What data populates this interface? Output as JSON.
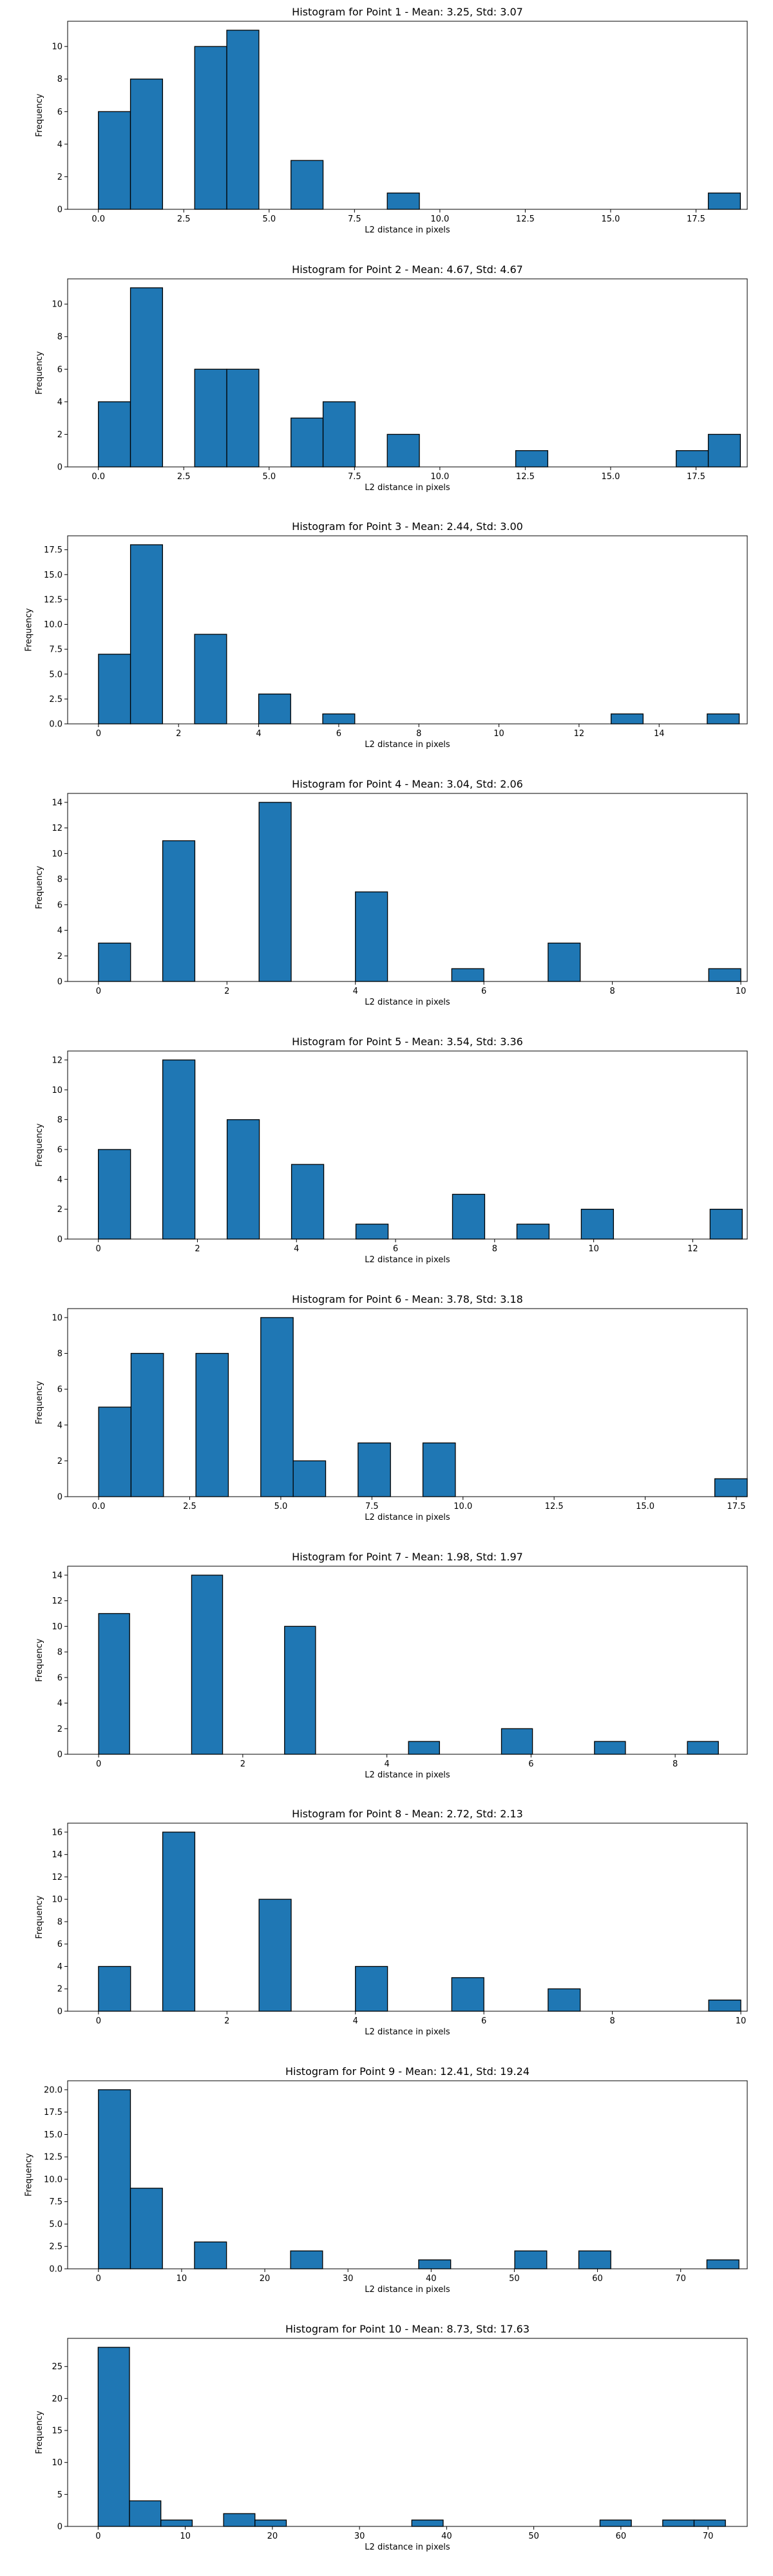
{
  "chart_data": [
    {
      "type": "bar",
      "title": "Histogram for Point 1 - Mean: 3.25, Std: 3.07",
      "xlabel": "L2 distance in pixels",
      "ylabel": "Frequency",
      "xlim": [
        -0.9,
        19.0
      ],
      "ylim": [
        0,
        11.55
      ],
      "xticks": [
        0,
        2.5,
        5,
        7.5,
        10,
        12.5,
        15,
        17.5
      ],
      "xtick_labels": [
        "0.0",
        "2.5",
        "5.0",
        "7.5",
        "10.0",
        "12.5",
        "15.0",
        "17.5"
      ],
      "yticks": [
        0,
        2,
        4,
        6,
        8,
        10
      ],
      "ytick_labels": [
        "0",
        "2",
        "4",
        "6",
        "8",
        "10"
      ],
      "bins": [
        {
          "x0": 0.0,
          "x1": 0.94,
          "count": 6
        },
        {
          "x0": 0.94,
          "x1": 1.88,
          "count": 8
        },
        {
          "x0": 2.82,
          "x1": 3.76,
          "count": 10
        },
        {
          "x0": 3.76,
          "x1": 4.7,
          "count": 11
        },
        {
          "x0": 5.64,
          "x1": 6.58,
          "count": 3
        },
        {
          "x0": 8.46,
          "x1": 9.4,
          "count": 1
        },
        {
          "x0": 17.86,
          "x1": 18.8,
          "count": 1
        }
      ]
    },
    {
      "type": "bar",
      "title": "Histogram for Point 2 - Mean: 4.67, Std: 4.67",
      "xlabel": "L2 distance in pixels",
      "ylabel": "Frequency",
      "xlim": [
        -0.9,
        19.0
      ],
      "ylim": [
        0,
        11.55
      ],
      "xticks": [
        0,
        2.5,
        5,
        7.5,
        10,
        12.5,
        15,
        17.5
      ],
      "xtick_labels": [
        "0.0",
        "2.5",
        "5.0",
        "7.5",
        "10.0",
        "12.5",
        "15.0",
        "17.5"
      ],
      "yticks": [
        0,
        2,
        4,
        6,
        8,
        10
      ],
      "ytick_labels": [
        "0",
        "2",
        "4",
        "6",
        "8",
        "10"
      ],
      "bins": [
        {
          "x0": 0.0,
          "x1": 0.94,
          "count": 4
        },
        {
          "x0": 0.94,
          "x1": 1.88,
          "count": 11
        },
        {
          "x0": 2.82,
          "x1": 3.76,
          "count": 6
        },
        {
          "x0": 3.76,
          "x1": 4.7,
          "count": 6
        },
        {
          "x0": 5.64,
          "x1": 6.58,
          "count": 3
        },
        {
          "x0": 6.58,
          "x1": 7.52,
          "count": 4
        },
        {
          "x0": 8.46,
          "x1": 9.4,
          "count": 2
        },
        {
          "x0": 12.22,
          "x1": 13.16,
          "count": 1
        },
        {
          "x0": 16.92,
          "x1": 17.86,
          "count": 1
        },
        {
          "x0": 17.86,
          "x1": 18.8,
          "count": 2
        }
      ]
    },
    {
      "type": "bar",
      "title": "Histogram for Point 3 - Mean: 2.44, Std: 3.00",
      "xlabel": "L2 distance in pixels",
      "ylabel": "Frequency",
      "xlim": [
        -0.77,
        16.2
      ],
      "ylim": [
        0,
        18.9
      ],
      "xticks": [
        0,
        2,
        4,
        6,
        8,
        10,
        12,
        14
      ],
      "xtick_labels": [
        "0",
        "2",
        "4",
        "6",
        "8",
        "10",
        "12",
        "14"
      ],
      "yticks": [
        0,
        2.5,
        5,
        7.5,
        10,
        12.5,
        15,
        17.5
      ],
      "ytick_labels": [
        "0.0",
        "2.5",
        "5.0",
        "7.5",
        "10.0",
        "12.5",
        "15.0",
        "17.5"
      ],
      "bins": [
        {
          "x0": 0.0,
          "x1": 0.8,
          "count": 7
        },
        {
          "x0": 0.8,
          "x1": 1.6,
          "count": 18
        },
        {
          "x0": 2.4,
          "x1": 3.2,
          "count": 9
        },
        {
          "x0": 4.0,
          "x1": 4.8,
          "count": 3
        },
        {
          "x0": 5.6,
          "x1": 6.4,
          "count": 1
        },
        {
          "x0": 12.8,
          "x1": 13.6,
          "count": 1
        },
        {
          "x0": 15.2,
          "x1": 16.0,
          "count": 1
        }
      ]
    },
    {
      "type": "bar",
      "title": "Histogram for Point 4 - Mean: 3.04, Std: 2.06",
      "xlabel": "L2 distance in pixels",
      "ylabel": "Frequency",
      "xlim": [
        -0.48,
        10.1
      ],
      "ylim": [
        0,
        14.7
      ],
      "xticks": [
        0,
        2,
        4,
        6,
        8,
        10
      ],
      "xtick_labels": [
        "0",
        "2",
        "4",
        "6",
        "8",
        "10"
      ],
      "yticks": [
        0,
        2,
        4,
        6,
        8,
        10,
        12,
        14
      ],
      "ytick_labels": [
        "0",
        "2",
        "4",
        "6",
        "8",
        "10",
        "12",
        "14"
      ],
      "bins": [
        {
          "x0": 0.0,
          "x1": 0.5,
          "count": 3
        },
        {
          "x0": 1.0,
          "x1": 1.5,
          "count": 11
        },
        {
          "x0": 2.5,
          "x1": 3.0,
          "count": 14
        },
        {
          "x0": 4.0,
          "x1": 4.5,
          "count": 7
        },
        {
          "x0": 5.5,
          "x1": 6.0,
          "count": 1
        },
        {
          "x0": 7.0,
          "x1": 7.5,
          "count": 3
        },
        {
          "x0": 9.5,
          "x1": 10.0,
          "count": 1
        }
      ]
    },
    {
      "type": "bar",
      "title": "Histogram for Point 5 - Mean: 3.54, Std: 3.36",
      "xlabel": "L2 distance in pixels",
      "ylabel": "Frequency",
      "xlim": [
        -0.62,
        13.1
      ],
      "ylim": [
        0,
        12.6
      ],
      "xticks": [
        0,
        2,
        4,
        6,
        8,
        10,
        12
      ],
      "xtick_labels": [
        "0",
        "2",
        "4",
        "6",
        "8",
        "10",
        "12"
      ],
      "yticks": [
        0,
        2,
        4,
        6,
        8,
        10,
        12
      ],
      "ytick_labels": [
        "0",
        "2",
        "4",
        "6",
        "8",
        "10",
        "12"
      ],
      "bins": [
        {
          "x0": 0.0,
          "x1": 0.65,
          "count": 6
        },
        {
          "x0": 1.3,
          "x1": 1.95,
          "count": 12
        },
        {
          "x0": 2.6,
          "x1": 3.25,
          "count": 8
        },
        {
          "x0": 3.9,
          "x1": 4.55,
          "count": 5
        },
        {
          "x0": 5.2,
          "x1": 5.85,
          "count": 1
        },
        {
          "x0": 7.15,
          "x1": 7.8,
          "count": 3
        },
        {
          "x0": 8.45,
          "x1": 9.1,
          "count": 1
        },
        {
          "x0": 9.75,
          "x1": 10.4,
          "count": 2
        },
        {
          "x0": 12.35,
          "x1": 13.0,
          "count": 2
        }
      ]
    },
    {
      "type": "bar",
      "title": "Histogram for Point 6 - Mean: 3.78, Std: 3.18",
      "xlabel": "L2 distance in pixels",
      "ylabel": "Frequency",
      "xlim": [
        -0.85,
        17.8
      ],
      "ylim": [
        0,
        10.5
      ],
      "xticks": [
        0,
        2.5,
        5,
        7.5,
        10,
        12.5,
        15,
        17.5
      ],
      "xtick_labels": [
        "0.0",
        "2.5",
        "5.0",
        "7.5",
        "10.0",
        "12.5",
        "15.0",
        "17.5"
      ],
      "yticks": [
        0,
        2,
        4,
        6,
        8,
        10
      ],
      "ytick_labels": [
        "0",
        "2",
        "4",
        "6",
        "8",
        "10"
      ],
      "bins": [
        {
          "x0": 0.0,
          "x1": 0.89,
          "count": 5
        },
        {
          "x0": 0.89,
          "x1": 1.78,
          "count": 8
        },
        {
          "x0": 2.67,
          "x1": 3.56,
          "count": 8
        },
        {
          "x0": 4.45,
          "x1": 5.34,
          "count": 10
        },
        {
          "x0": 5.34,
          "x1": 6.23,
          "count": 2
        },
        {
          "x0": 7.12,
          "x1": 8.01,
          "count": 3
        },
        {
          "x0": 8.9,
          "x1": 9.79,
          "count": 3
        },
        {
          "x0": 16.91,
          "x1": 17.8,
          "count": 1
        }
      ]
    },
    {
      "type": "bar",
      "title": "Histogram for Point 7 - Mean: 1.98, Std: 1.97",
      "xlabel": "L2 distance in pixels",
      "ylabel": "Frequency",
      "xlim": [
        -0.43,
        9.0
      ],
      "ylim": [
        0,
        14.7
      ],
      "xticks": [
        0,
        2,
        4,
        6,
        8
      ],
      "xtick_labels": [
        "0",
        "2",
        "4",
        "6",
        "8"
      ],
      "yticks": [
        0,
        2,
        4,
        6,
        8,
        10,
        12,
        14
      ],
      "ytick_labels": [
        "0",
        "2",
        "4",
        "6",
        "8",
        "10",
        "12",
        "14"
      ],
      "bins": [
        {
          "x0": 0.0,
          "x1": 0.43,
          "count": 11
        },
        {
          "x0": 1.29,
          "x1": 1.72,
          "count": 14
        },
        {
          "x0": 2.58,
          "x1": 3.01,
          "count": 10
        },
        {
          "x0": 4.3,
          "x1": 4.73,
          "count": 1
        },
        {
          "x0": 5.59,
          "x1": 6.02,
          "count": 2
        },
        {
          "x0": 6.88,
          "x1": 7.31,
          "count": 1
        },
        {
          "x0": 8.17,
          "x1": 8.6,
          "count": 1
        }
      ]
    },
    {
      "type": "bar",
      "title": "Histogram for Point 8 - Mean: 2.72, Std: 2.13",
      "xlabel": "L2 distance in pixels",
      "ylabel": "Frequency",
      "xlim": [
        -0.48,
        10.1
      ],
      "ylim": [
        0,
        16.8
      ],
      "xticks": [
        0,
        2,
        4,
        6,
        8,
        10
      ],
      "xtick_labels": [
        "0",
        "2",
        "4",
        "6",
        "8",
        "10"
      ],
      "yticks": [
        0,
        2,
        4,
        6,
        8,
        10,
        12,
        14,
        16
      ],
      "ytick_labels": [
        "0",
        "2",
        "4",
        "6",
        "8",
        "10",
        "12",
        "14",
        "16"
      ],
      "bins": [
        {
          "x0": 0.0,
          "x1": 0.5,
          "count": 4
        },
        {
          "x0": 1.0,
          "x1": 1.5,
          "count": 16
        },
        {
          "x0": 2.5,
          "x1": 3.0,
          "count": 10
        },
        {
          "x0": 4.0,
          "x1": 4.5,
          "count": 4
        },
        {
          "x0": 5.5,
          "x1": 6.0,
          "count": 3
        },
        {
          "x0": 7.0,
          "x1": 7.5,
          "count": 2
        },
        {
          "x0": 9.5,
          "x1": 10.0,
          "count": 1
        }
      ]
    },
    {
      "type": "bar",
      "title": "Histogram for Point 9 - Mean: 12.41, Std: 19.24",
      "xlabel": "L2 distance in pixels",
      "ylabel": "Frequency",
      "xlim": [
        -3.7,
        78.0
      ],
      "ylim": [
        0,
        21.0
      ],
      "xticks": [
        0,
        10,
        20,
        30,
        40,
        50,
        60,
        70
      ],
      "xtick_labels": [
        "0",
        "10",
        "20",
        "30",
        "40",
        "50",
        "60",
        "70"
      ],
      "yticks": [
        0,
        2.5,
        5,
        7.5,
        10,
        12.5,
        15,
        17.5,
        20
      ],
      "ytick_labels": [
        "0.0",
        "2.5",
        "5.0",
        "7.5",
        "10.0",
        "12.5",
        "15.0",
        "17.5",
        "20.0"
      ],
      "bins": [
        {
          "x0": 0.0,
          "x1": 3.85,
          "count": 20
        },
        {
          "x0": 3.85,
          "x1": 7.7,
          "count": 9
        },
        {
          "x0": 11.55,
          "x1": 15.4,
          "count": 3
        },
        {
          "x0": 23.1,
          "x1": 26.95,
          "count": 2
        },
        {
          "x0": 38.5,
          "x1": 42.35,
          "count": 1
        },
        {
          "x0": 50.05,
          "x1": 53.9,
          "count": 2
        },
        {
          "x0": 57.75,
          "x1": 61.6,
          "count": 2
        },
        {
          "x0": 73.15,
          "x1": 77.0,
          "count": 1
        }
      ]
    },
    {
      "type": "bar",
      "title": "Histogram for Point 10 - Mean: 8.73, Std: 17.63",
      "xlabel": "L2 distance in pixels",
      "ylabel": "Frequency",
      "xlim": [
        -3.5,
        74.5
      ],
      "ylim": [
        0,
        29.4
      ],
      "xticks": [
        0,
        10,
        20,
        30,
        40,
        50,
        60,
        70
      ],
      "xtick_labels": [
        "0",
        "10",
        "20",
        "30",
        "40",
        "50",
        "60",
        "70"
      ],
      "yticks": [
        0,
        5,
        10,
        15,
        20,
        25
      ],
      "ytick_labels": [
        "0",
        "5",
        "10",
        "15",
        "20",
        "25"
      ],
      "bins": [
        {
          "x0": 0.0,
          "x1": 3.6,
          "count": 28
        },
        {
          "x0": 3.6,
          "x1": 7.2,
          "count": 4
        },
        {
          "x0": 7.2,
          "x1": 10.8,
          "count": 1
        },
        {
          "x0": 14.4,
          "x1": 18.0,
          "count": 2
        },
        {
          "x0": 18.0,
          "x1": 21.6,
          "count": 1
        },
        {
          "x0": 36.0,
          "x1": 39.6,
          "count": 1
        },
        {
          "x0": 57.6,
          "x1": 61.2,
          "count": 1
        },
        {
          "x0": 64.8,
          "x1": 68.4,
          "count": 1
        },
        {
          "x0": 68.4,
          "x1": 72.0,
          "count": 1
        }
      ]
    }
  ],
  "colors": {
    "bar_fill": "#1f77b4",
    "bar_edge": "#000000"
  }
}
